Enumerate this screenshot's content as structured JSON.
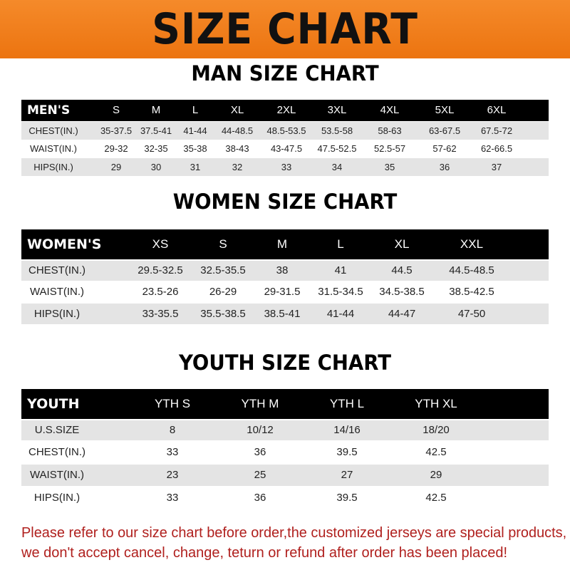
{
  "banner_title": "SIZE CHART",
  "men": {
    "title": "MAN SIZE CHART",
    "header": [
      "MEN'S",
      "S",
      "M",
      "L",
      "XL",
      "2XL",
      "3XL",
      "4XL",
      "5XL",
      "6XL"
    ],
    "rows": [
      [
        "CHEST(IN.)",
        "35-37.5",
        "37.5-41",
        "41-44",
        "44-48.5",
        "48.5-53.5",
        "53.5-58",
        "58-63",
        "63-67.5",
        "67.5-72"
      ],
      [
        "WAIST(IN.)",
        "29-32",
        "32-35",
        "35-38",
        "38-43",
        "43-47.5",
        "47.5-52.5",
        "52.5-57",
        "57-62",
        "62-66.5"
      ],
      [
        "HIPS(IN.)",
        "29",
        "30",
        "31",
        "32",
        "33",
        "34",
        "35",
        "36",
        "37"
      ]
    ]
  },
  "women": {
    "title": "WOMEN SIZE CHART",
    "header": [
      "WOMEN'S",
      "XS",
      "S",
      "M",
      "L",
      "XL",
      "XXL"
    ],
    "rows": [
      [
        "CHEST(IN.)",
        "29.5-32.5",
        "32.5-35.5",
        "38",
        "41",
        "44.5",
        "44.5-48.5"
      ],
      [
        "WAIST(IN.)",
        "23.5-26",
        "26-29",
        "29-31.5",
        "31.5-34.5",
        "34.5-38.5",
        "38.5-42.5"
      ],
      [
        "HIPS(IN.)",
        "33-35.5",
        "35.5-38.5",
        "38.5-41",
        "41-44",
        "44-47",
        "47-50"
      ]
    ]
  },
  "youth": {
    "title": "YOUTH SIZE CHART",
    "header": [
      "YOUTH",
      "YTH S",
      "YTH M",
      "YTH L",
      "YTH XL"
    ],
    "rows": [
      [
        "U.S.SIZE",
        "8",
        "10/12",
        "14/16",
        "18/20"
      ],
      [
        "CHEST(IN.)",
        "33",
        "36",
        "39.5",
        "42.5"
      ],
      [
        "WAIST(IN.)",
        "23",
        "25",
        "27",
        "29"
      ],
      [
        "HIPS(IN.)",
        "33",
        "36",
        "39.5",
        "42.5"
      ]
    ]
  },
  "footer": {
    "line1": "Please refer to our size chart before order,the customized jerseys are special products,",
    "line2": "we don't accept cancel, change, teturn or refund after order has been placed!"
  },
  "colors": {
    "banner": "#f07a1a",
    "header_row": "#000000",
    "shaded_row": "#e4e4e4",
    "footer_text": "#b0201e"
  }
}
